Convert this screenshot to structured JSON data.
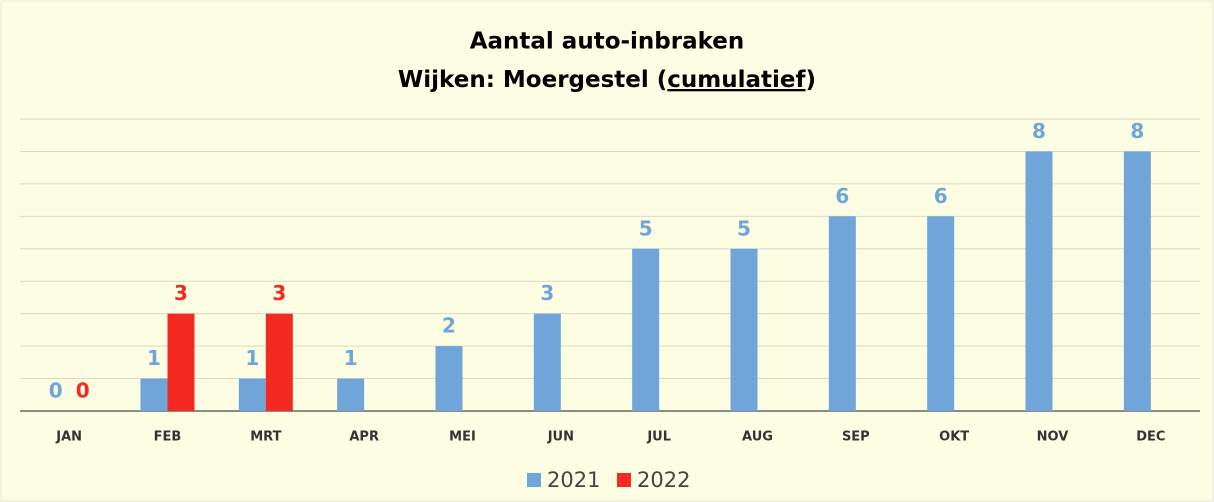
{
  "chart_data": {
    "type": "bar",
    "title": "Aantal auto-inbraken",
    "subtitle": [
      "Wijken: Moergestel (",
      "cumulatief",
      ")"
    ],
    "categories": [
      "JAN",
      "FEB",
      "MRT",
      "APR",
      "MEI",
      "JUN",
      "JUL",
      "AUG",
      "SEP",
      "OKT",
      "NOV",
      "DEC"
    ],
    "series": [
      {
        "name": "2021",
        "color": "#6fa5d9",
        "values": [
          0,
          1,
          1,
          1,
          2,
          3,
          5,
          5,
          6,
          6,
          8,
          8
        ]
      },
      {
        "name": "2022",
        "color": "#f42a20",
        "values": [
          0,
          3,
          3,
          null,
          null,
          null,
          null,
          null,
          null,
          null,
          null,
          null
        ]
      }
    ],
    "ylim": [
      0,
      9
    ],
    "yticks": [
      0,
      1,
      2,
      3,
      4,
      5,
      6,
      7,
      8,
      9
    ],
    "grid": true,
    "legend": "bottom"
  }
}
